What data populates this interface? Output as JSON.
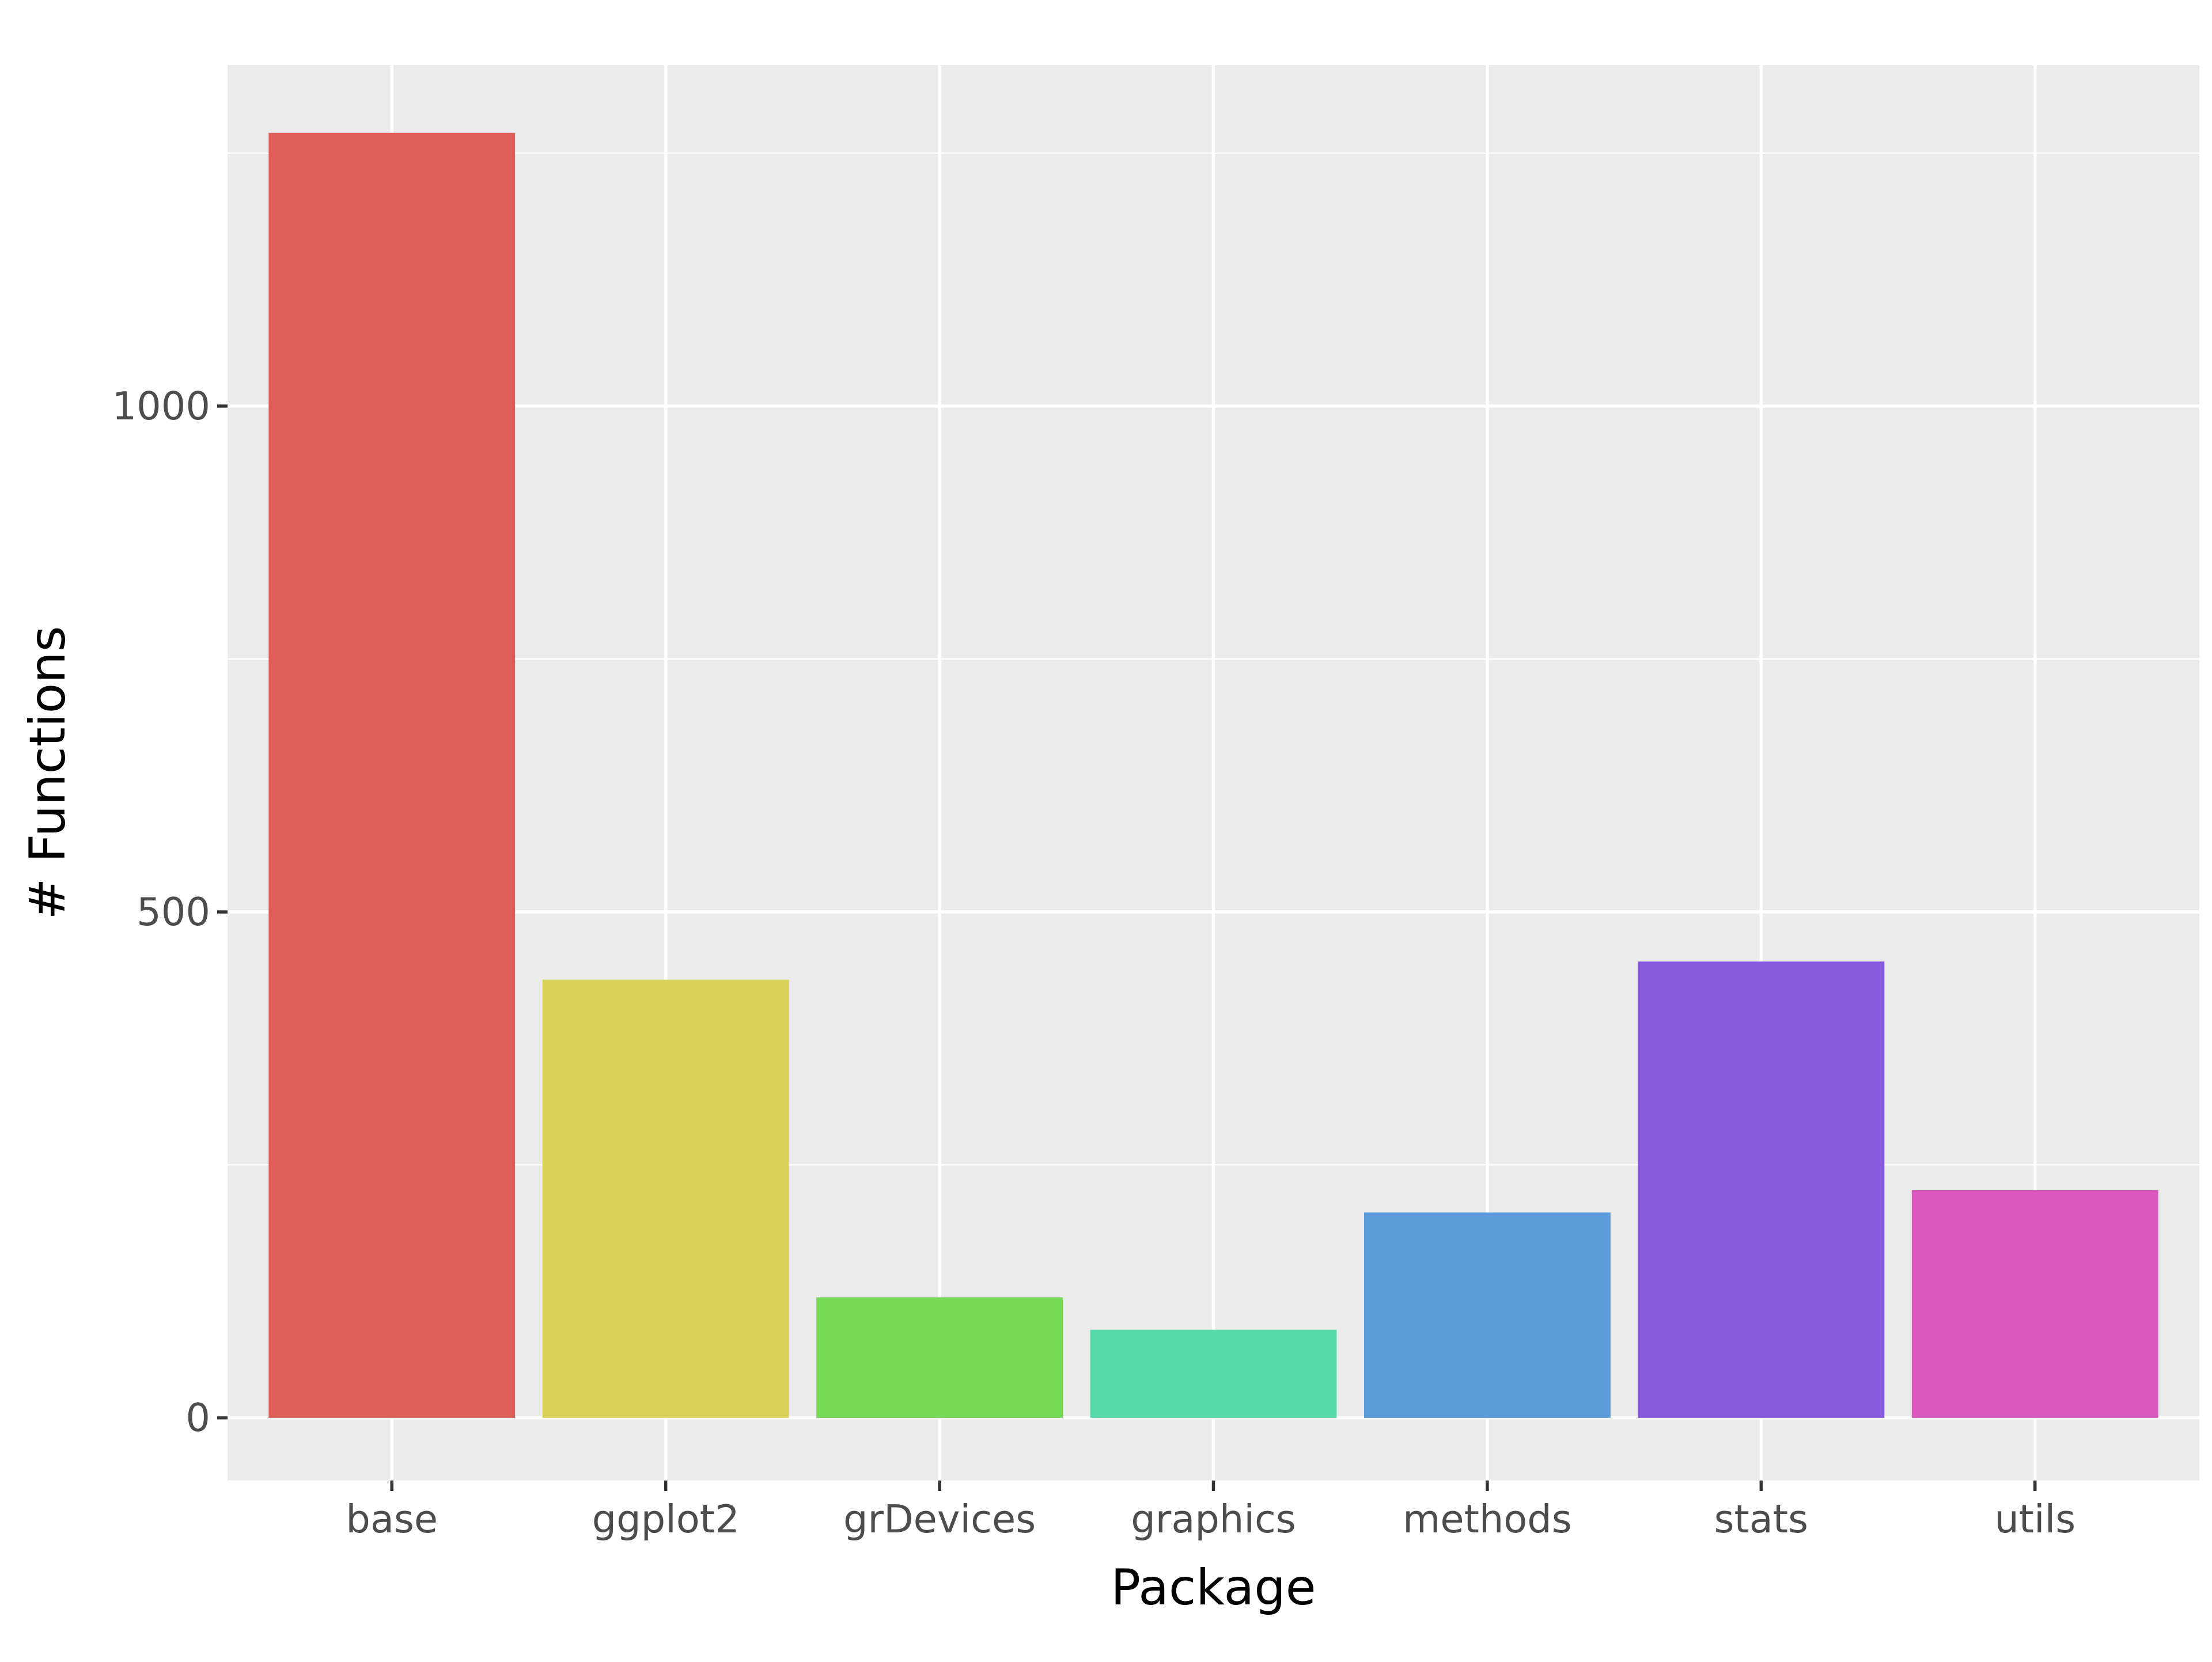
{
  "chart_data": {
    "type": "bar",
    "title": "",
    "xlabel": "Package",
    "ylabel": "# Functions",
    "categories": [
      "base",
      "ggplot2",
      "grDevices",
      "graphics",
      "methods",
      "stats",
      "utils"
    ],
    "values": [
      1270,
      433,
      119,
      87,
      203,
      451,
      225
    ],
    "colors": [
      "#de6058",
      "#dbd05a",
      "#77da56",
      "#57dbaa",
      "#5b9bda",
      "#8558dc",
      "#da58bd"
    ],
    "ylim": [
      -62,
      1337
    ],
    "y_ticks": [
      0,
      500,
      1000
    ],
    "y_minor_ticks": [
      250,
      750,
      1250
    ],
    "grid": true,
    "legend": "none",
    "panel_background": "#ebebeb",
    "gridline_color": "#ffffff"
  }
}
